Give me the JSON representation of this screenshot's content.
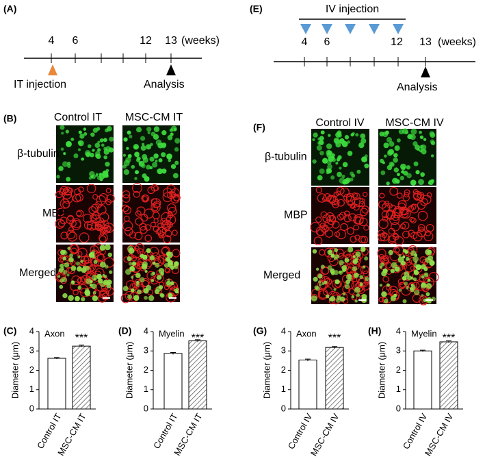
{
  "panel_labels": [
    "(A)",
    "(E)",
    "(B)",
    "(F)"
  ],
  "timeline_it": {
    "ticks": [
      "4",
      "6",
      "12",
      "13"
    ],
    "unit": "(weeks)",
    "injection": "IT injection",
    "analysis": "Analysis"
  },
  "timeline_iv": {
    "ticks": [
      "4",
      "6",
      "12",
      "13"
    ],
    "unit": "(weeks)",
    "injection": "IV injection",
    "analysis": "Analysis"
  },
  "images_it": {
    "columns": [
      "Control IT",
      "MSC-CM IT"
    ],
    "rows": [
      "β-tubulin",
      "MBP",
      "Merged"
    ]
  },
  "images_iv": {
    "columns": [
      "Control IV",
      "MSC-CM IV"
    ],
    "rows": [
      "β-tubulin",
      "MBP",
      "Merged"
    ]
  },
  "chart_data": [
    {
      "type": "bar",
      "label": "(C)",
      "title": "Axon",
      "ylabel": "Diameter (μm)",
      "categories": [
        "Control IT",
        "MSC-CM IT"
      ],
      "values": [
        2.62,
        3.25
      ],
      "errors": [
        0.04,
        0.05
      ],
      "annotation": "***",
      "ylim": [
        0,
        4
      ],
      "yticks": [
        0,
        1,
        2,
        3,
        4
      ]
    },
    {
      "type": "bar",
      "label": "(D)",
      "title": "Myelin",
      "ylabel": "Diameter (μm)",
      "categories": [
        "Control IT",
        "MSC-CM IT"
      ],
      "values": [
        2.87,
        3.52
      ],
      "errors": [
        0.05,
        0.06
      ],
      "annotation": "***",
      "ylim": [
        0,
        4
      ],
      "yticks": [
        0,
        1,
        2,
        3,
        4
      ]
    },
    {
      "type": "bar",
      "label": "(G)",
      "title": "Axon",
      "ylabel": "Diameter (μm)",
      "categories": [
        "Control IV",
        "MSC-CM IV"
      ],
      "values": [
        2.53,
        3.18
      ],
      "errors": [
        0.05,
        0.05
      ],
      "annotation": "***",
      "ylim": [
        0,
        4
      ],
      "yticks": [
        0,
        1,
        2,
        3,
        4
      ]
    },
    {
      "type": "bar",
      "label": "(H)",
      "title": "Myelin",
      "ylabel": "Diameter (μm)",
      "categories": [
        "Control IV",
        "MSC-CM IV"
      ],
      "values": [
        3.0,
        3.47
      ],
      "errors": [
        0.04,
        0.05
      ],
      "annotation": "***",
      "ylim": [
        0,
        4
      ],
      "yticks": [
        0,
        1,
        2,
        3,
        4
      ]
    }
  ]
}
